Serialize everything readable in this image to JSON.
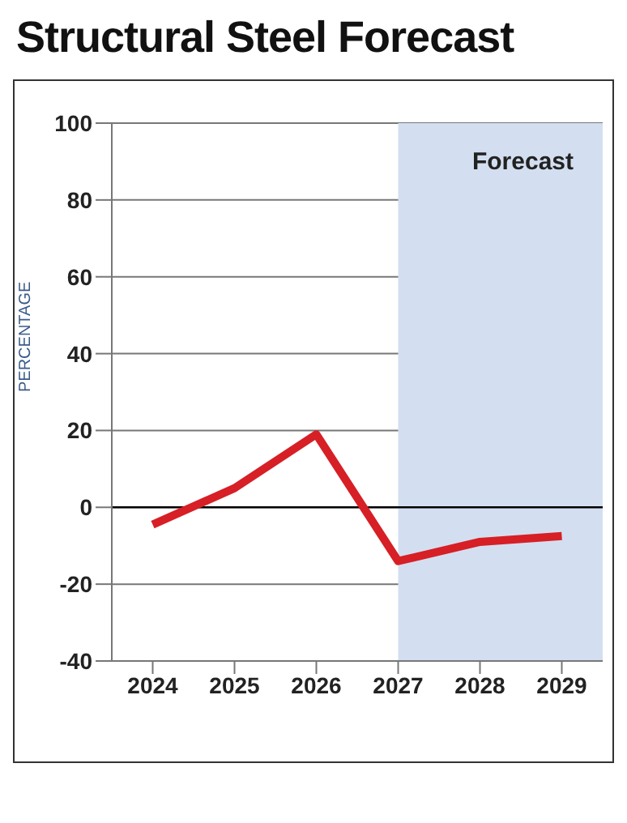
{
  "chart_data": {
    "type": "line",
    "title": "Structural Steel Forecast",
    "ylabel": "PERCENTAGE",
    "x": [
      2024,
      2025,
      2026,
      2027,
      2028,
      2029
    ],
    "series": [
      {
        "color": "#d71f26",
        "values": [
          -4.5,
          5,
          19,
          -14,
          -9,
          -7.5
        ]
      }
    ],
    "xlim": [
      2023.5,
      2029.5
    ],
    "xticks": [
      2024,
      2025,
      2026,
      2027,
      2028,
      2029
    ],
    "ylim": [
      -40,
      100
    ],
    "yticks": [
      -40,
      -20,
      0,
      20,
      40,
      60,
      80,
      100
    ],
    "bands": [
      {
        "axis": "x",
        "from": 2027,
        "to": 2029.5,
        "label": "Forecast",
        "color": "#d3dff0"
      }
    ],
    "ref_lines": [
      {
        "axis": "y",
        "value": 0,
        "color": "#000000"
      }
    ],
    "grid": "y",
    "legend": false,
    "marker": "none",
    "line_style": "solid"
  }
}
